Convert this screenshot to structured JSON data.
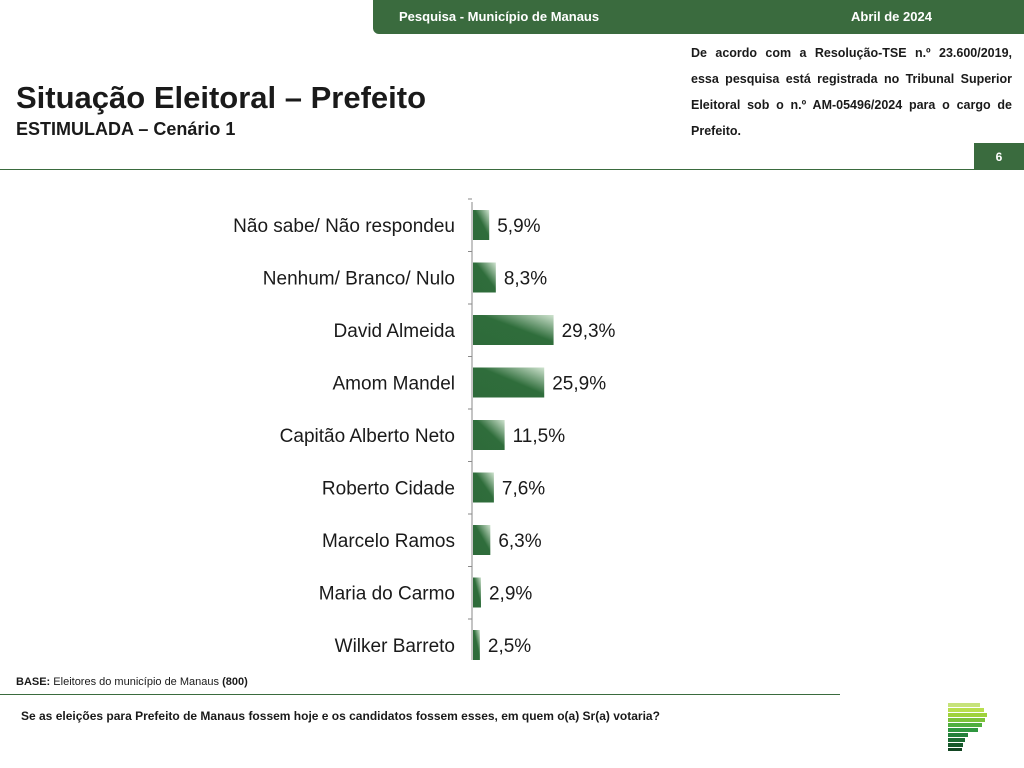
{
  "header": {
    "survey": "Pesquisa - Município de Manaus",
    "date": "Abril de 2024",
    "page_number": "6"
  },
  "title": "Situação Eleitoral – Prefeito",
  "subtitle": "ESTIMULADA – Cenário 1",
  "registration_note": "De acordo com a Resolução-TSE n.º 23.600/2019, essa pesquisa está registrada no Tribunal Superior Eleitoral sob o n.º AM-05496/2024 para o cargo de Prefeito.",
  "base": {
    "label": "BASE:",
    "text": " Eleitores do município de Manaus ",
    "count": "(800)"
  },
  "question": "Se as eleições para Prefeito de Manaus fossem hoje e os candidatos fossem esses, em quem o(a) Sr(a) votaria?",
  "colors": {
    "brand_green": "#3a6b3e",
    "bar_dark": "#2e6a3a",
    "bar_light": "#cfe3cf"
  },
  "chart_data": {
    "type": "bar",
    "orientation": "horizontal",
    "categories": [
      "Não sabe/ Não respondeu",
      "Nenhum/ Branco/ Nulo",
      "David Almeida",
      "Amom Mandel",
      "Capitão Alberto Neto",
      "Roberto Cidade",
      "Marcelo Ramos",
      "Maria do Carmo",
      "Wilker Barreto"
    ],
    "values": [
      5.9,
      8.3,
      29.3,
      25.9,
      11.5,
      7.6,
      6.3,
      2.9,
      2.5
    ],
    "value_labels": [
      "5,9%",
      "8,3%",
      "29,3%",
      "25,9%",
      "11,5%",
      "7,6%",
      "6,3%",
      "2,9%",
      "2,5%"
    ],
    "unit": "%",
    "title": "",
    "xlabel": "",
    "ylabel": "",
    "xlim": [
      0,
      100
    ],
    "grid": false,
    "legend": "none"
  }
}
